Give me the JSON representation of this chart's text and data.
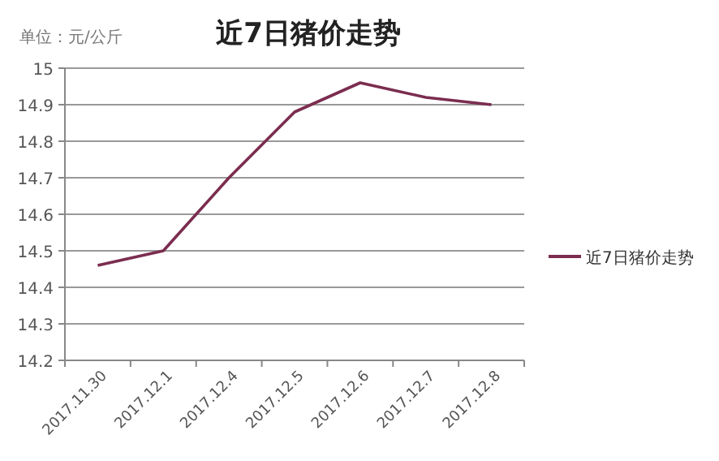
{
  "chart_data": {
    "type": "line",
    "title": "近7日猪价走势",
    "ylabel": "单位：元/公斤",
    "categories": [
      "2017.11.30",
      "2017.12.1",
      "2017.12.4",
      "2017.12.5",
      "2017.12.6",
      "2017.12.7",
      "2017.12.8"
    ],
    "series": [
      {
        "name": "近7日猪价走势",
        "color": "#7b2d4f",
        "values": [
          14.46,
          14.5,
          14.7,
          14.88,
          14.96,
          14.92,
          14.9
        ]
      }
    ],
    "ylim": [
      14.2,
      15
    ],
    "yticks": [
      {
        "value": 14.2,
        "label": "14.2"
      },
      {
        "value": 14.3,
        "label": "14.3"
      },
      {
        "value": 14.4,
        "label": "14.4"
      },
      {
        "value": 14.5,
        "label": "14.5"
      },
      {
        "value": 14.6,
        "label": "14.6"
      },
      {
        "value": 14.7,
        "label": "14.7"
      },
      {
        "value": 14.8,
        "label": "14.8"
      },
      {
        "value": 14.9,
        "label": "14.9"
      },
      {
        "value": 15,
        "label": "15"
      }
    ],
    "grid": "y",
    "legend": "right",
    "marker": "none",
    "line_style": "solid"
  }
}
